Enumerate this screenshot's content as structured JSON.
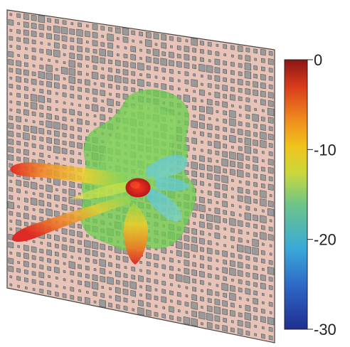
{
  "figure": {
    "description_type": "3D metasurface with radiation pattern lobes and colorbar",
    "panel_color": "#e8c4b8",
    "cell_fill": "#9a9a9a",
    "cell_stroke": "#4a4a4a"
  },
  "colorbar": {
    "min": -30,
    "max": 0,
    "ticks": [
      {
        "value": 0,
        "label": "0"
      },
      {
        "value": -10,
        "label": "-10"
      },
      {
        "value": -20,
        "label": "-20"
      },
      {
        "value": -30,
        "label": "-30"
      }
    ],
    "colormap": [
      "#1f2f8f",
      "#2c63c4",
      "#3aa9d8",
      "#6cc48a",
      "#c9d93c",
      "#f1c21b",
      "#ef8a1e",
      "#d93b1b",
      "#8b1515"
    ]
  },
  "pattern": {
    "main_lobe_color": "#d9261c",
    "body_color": "#6ccf4f",
    "side_lobe_colors": [
      "#e35b1e",
      "#f0b21a",
      "#57c7e6"
    ]
  }
}
